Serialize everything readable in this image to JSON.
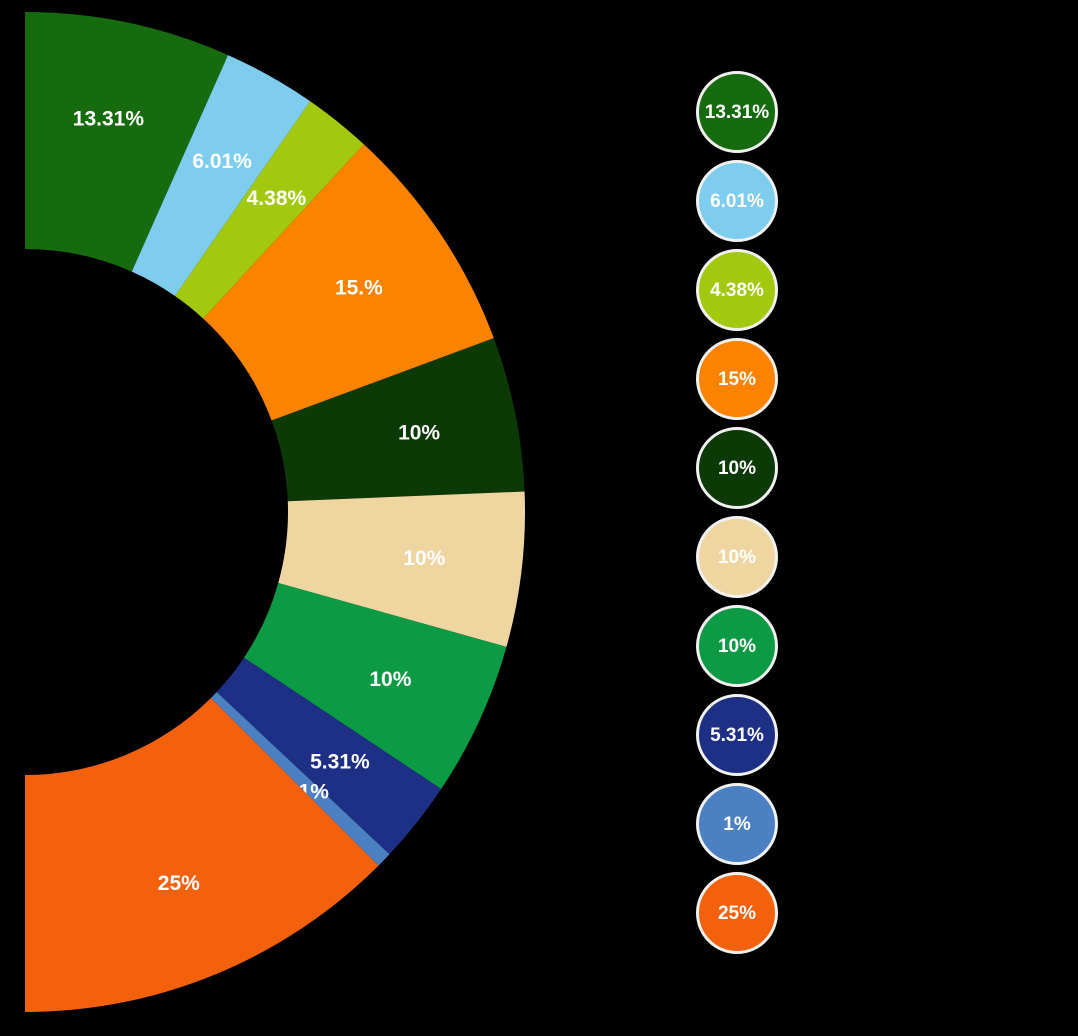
{
  "background_color": "#000000",
  "chart_data": {
    "type": "pie",
    "subtype": "half-donut",
    "title": "",
    "orientation": "right-facing-semicircle-top-to-bottom-clockwise",
    "grid": false,
    "legend_position": "right",
    "slice_label_color": "#FFFFFF",
    "legend_text_color": "#FFFFFF",
    "legend_ring_color": "#F1F1F1",
    "slices": [
      {
        "value": 13.31,
        "chart_label": "13.31%",
        "legend_label": "13.31%",
        "color": "#156B0D"
      },
      {
        "value": 6.01,
        "chart_label": "6.01%",
        "legend_label": "6.01%",
        "color": "#7ECDEF"
      },
      {
        "value": 4.38,
        "chart_label": "4.38%",
        "legend_label": "4.38%",
        "color": "#A3C90F"
      },
      {
        "value": 15,
        "chart_label": "15.%",
        "legend_label": "15%",
        "color": "#FB8300"
      },
      {
        "value": 10,
        "chart_label": "10%",
        "legend_label": "10%",
        "color": "#0C3A06"
      },
      {
        "value": 10,
        "chart_label": "10%",
        "legend_label": "10%",
        "color": "#EFD5A0"
      },
      {
        "value": 10,
        "chart_label": "10%",
        "legend_label": "10%",
        "color": "#0C9A45"
      },
      {
        "value": 5.31,
        "chart_label": "5.31%",
        "legend_label": "5.31%",
        "color": "#1E3085"
      },
      {
        "value": 1,
        "chart_label": "1%",
        "legend_label": "1%",
        "color": "#4B81C3"
      },
      {
        "value": 25,
        "chart_label": "25%",
        "legend_label": "25%",
        "color": "#F4610D"
      }
    ]
  }
}
